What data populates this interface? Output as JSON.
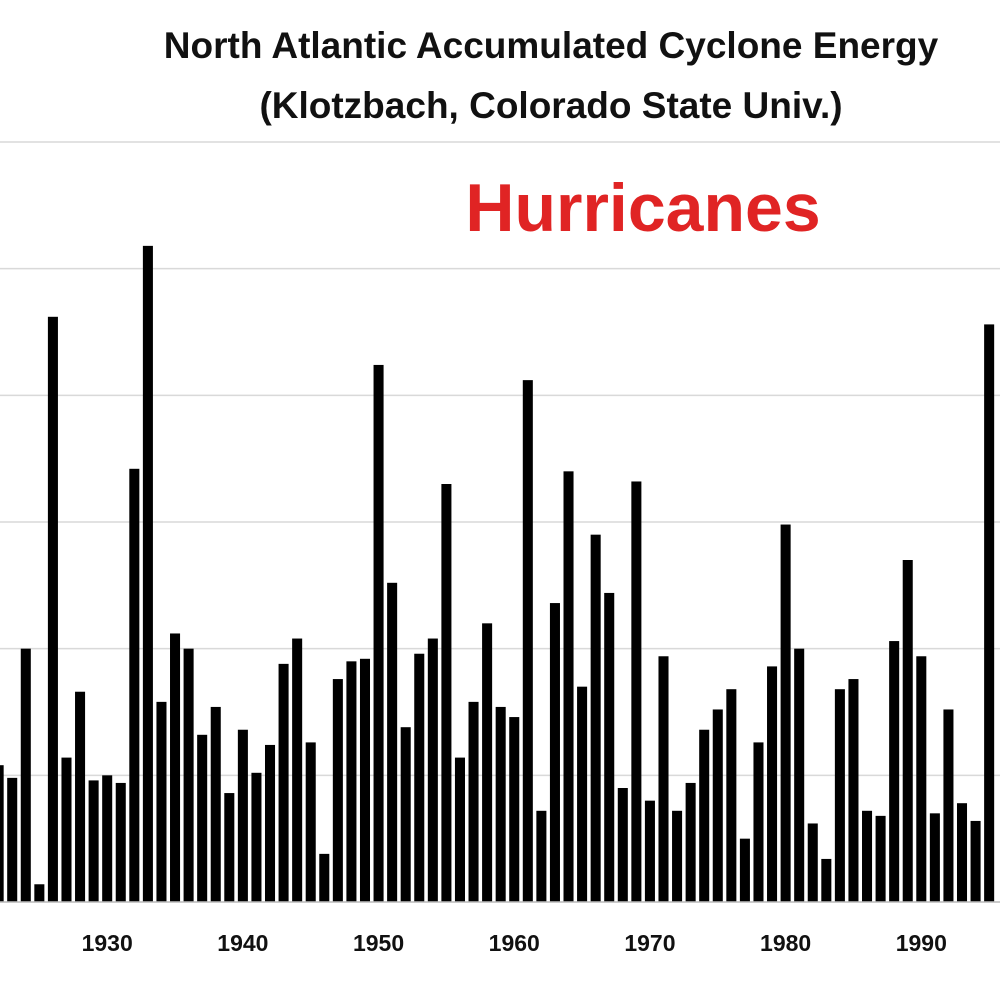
{
  "chart_data": {
    "type": "bar",
    "title": "North Atlantic Accumulated Cyclone Energy",
    "subtitle": "(Klotzbach, Colorado State Univ.)",
    "annotation": "Hurricanes",
    "annotation_color": "#e02424",
    "color": "#000000",
    "grid": true,
    "x": [
      1922,
      1923,
      1924,
      1925,
      1926,
      1927,
      1928,
      1929,
      1930,
      1931,
      1932,
      1933,
      1934,
      1935,
      1936,
      1937,
      1938,
      1939,
      1940,
      1941,
      1942,
      1943,
      1944,
      1945,
      1946,
      1947,
      1948,
      1949,
      1950,
      1951,
      1952,
      1953,
      1954,
      1955,
      1956,
      1957,
      1958,
      1959,
      1960,
      1961,
      1962,
      1963,
      1964,
      1965,
      1966,
      1967,
      1968,
      1969,
      1970,
      1971,
      1972,
      1973,
      1974,
      1975,
      1976,
      1977,
      1978,
      1979,
      1980,
      1981,
      1982,
      1983,
      1984,
      1985,
      1986,
      1987,
      1988,
      1989,
      1990,
      1991,
      1992,
      1993,
      1994,
      1995
    ],
    "values": [
      54,
      49,
      100,
      7,
      231,
      57,
      83,
      48,
      50,
      47,
      171,
      259,
      79,
      106,
      100,
      66,
      77,
      43,
      68,
      51,
      62,
      94,
      104,
      63,
      19,
      88,
      95,
      96,
      212,
      126,
      69,
      98,
      104,
      165,
      57,
      79,
      110,
      77,
      73,
      206,
      36,
      118,
      170,
      85,
      145,
      122,
      45,
      166,
      40,
      97,
      36,
      47,
      68,
      76,
      84,
      25,
      63,
      93,
      149,
      100,
      31,
      17,
      84,
      88,
      36,
      34,
      103,
      135,
      97,
      35,
      76,
      39,
      32,
      228
    ],
    "xlim": [
      1922.1,
      1995.8
    ],
    "xticks": [
      1920,
      1930,
      1940,
      1950,
      1960,
      1970,
      1980,
      1990
    ],
    "ylim": [
      0,
      300
    ],
    "yticks": [
      0,
      50,
      100,
      150,
      200,
      250,
      300
    ]
  }
}
